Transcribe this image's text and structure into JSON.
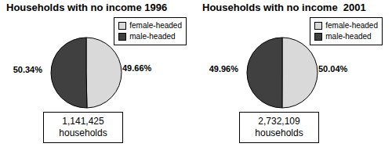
{
  "chart_data": [
    {
      "type": "pie",
      "title": "Households with no income 1996",
      "categories": [
        "female-headed",
        "male-headed"
      ],
      "values": [
        49.66,
        50.34
      ],
      "value_labels": [
        "49.66%",
        "50.34%"
      ],
      "colors": [
        "#d9d9d9",
        "#404040"
      ],
      "data_labels": true,
      "legend": "top-right",
      "annotations": [
        "1,141,425",
        "households"
      ]
    },
    {
      "type": "pie",
      "title": "Households with no income  2001",
      "categories": [
        "female-headed",
        "male-headed"
      ],
      "values": [
        50.04,
        49.96
      ],
      "value_labels": [
        "50.04%",
        "49.96%"
      ],
      "colors": [
        "#d9d9d9",
        "#404040"
      ],
      "data_labels": true,
      "legend": "top-right",
      "annotations": [
        "2,732,109",
        "households"
      ]
    }
  ]
}
